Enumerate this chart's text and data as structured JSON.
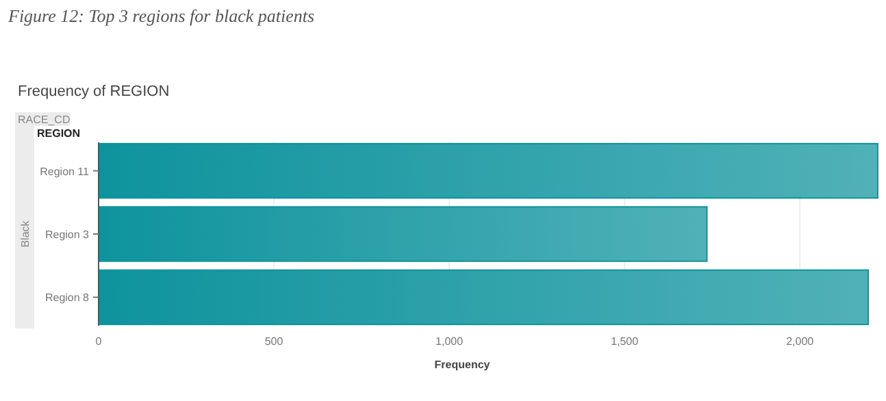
{
  "chart_data": {
    "type": "bar",
    "orientation": "horizontal",
    "title": "Frequency of REGION",
    "xlabel": "Frequency",
    "ylabel": "REGION",
    "annotations": [
      "Figure 12: Top 3 regions for black patients",
      "RACE_CD",
      "Black"
    ],
    "categories": [
      "Region 11",
      "Region 3",
      "Region 8"
    ],
    "values": [
      2222,
      1735,
      2195
    ],
    "color": "#0e939d",
    "xlim": [
      0,
      2230
    ],
    "xticks": [
      0,
      {
        "value": 500,
        "label": "500"
      },
      {
        "value": 1000,
        "label": "1,000"
      },
      {
        "value": 1500,
        "label": "1,500"
      },
      {
        "value": 2000,
        "label": "2,000"
      }
    ],
    "grid": "x"
  }
}
